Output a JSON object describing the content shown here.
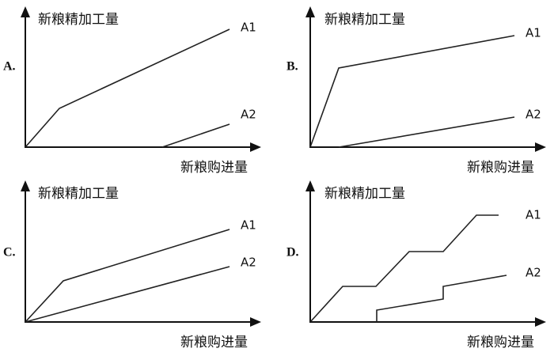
{
  "panels": [
    {
      "label": "A.",
      "y_axis_label": "新粮精加工量",
      "x_axis_label": "新粮购进量",
      "lines": [
        {
          "label": "A1"
        },
        {
          "label": "A2"
        }
      ]
    },
    {
      "label": "B.",
      "y_axis_label": "新粮精加工量",
      "x_axis_label": "新粮购进量",
      "lines": [
        {
          "label": "A1"
        },
        {
          "label": "A2"
        }
      ]
    },
    {
      "label": "C.",
      "y_axis_label": "新粮精加工量",
      "x_axis_label": "新粮购进量",
      "lines": [
        {
          "label": "A1"
        },
        {
          "label": "A2"
        }
      ]
    },
    {
      "label": "D.",
      "y_axis_label": "新粮精加工量",
      "x_axis_label": "新粮购进量",
      "lines": [
        {
          "label": "A1"
        },
        {
          "label": "A2"
        }
      ]
    }
  ]
}
